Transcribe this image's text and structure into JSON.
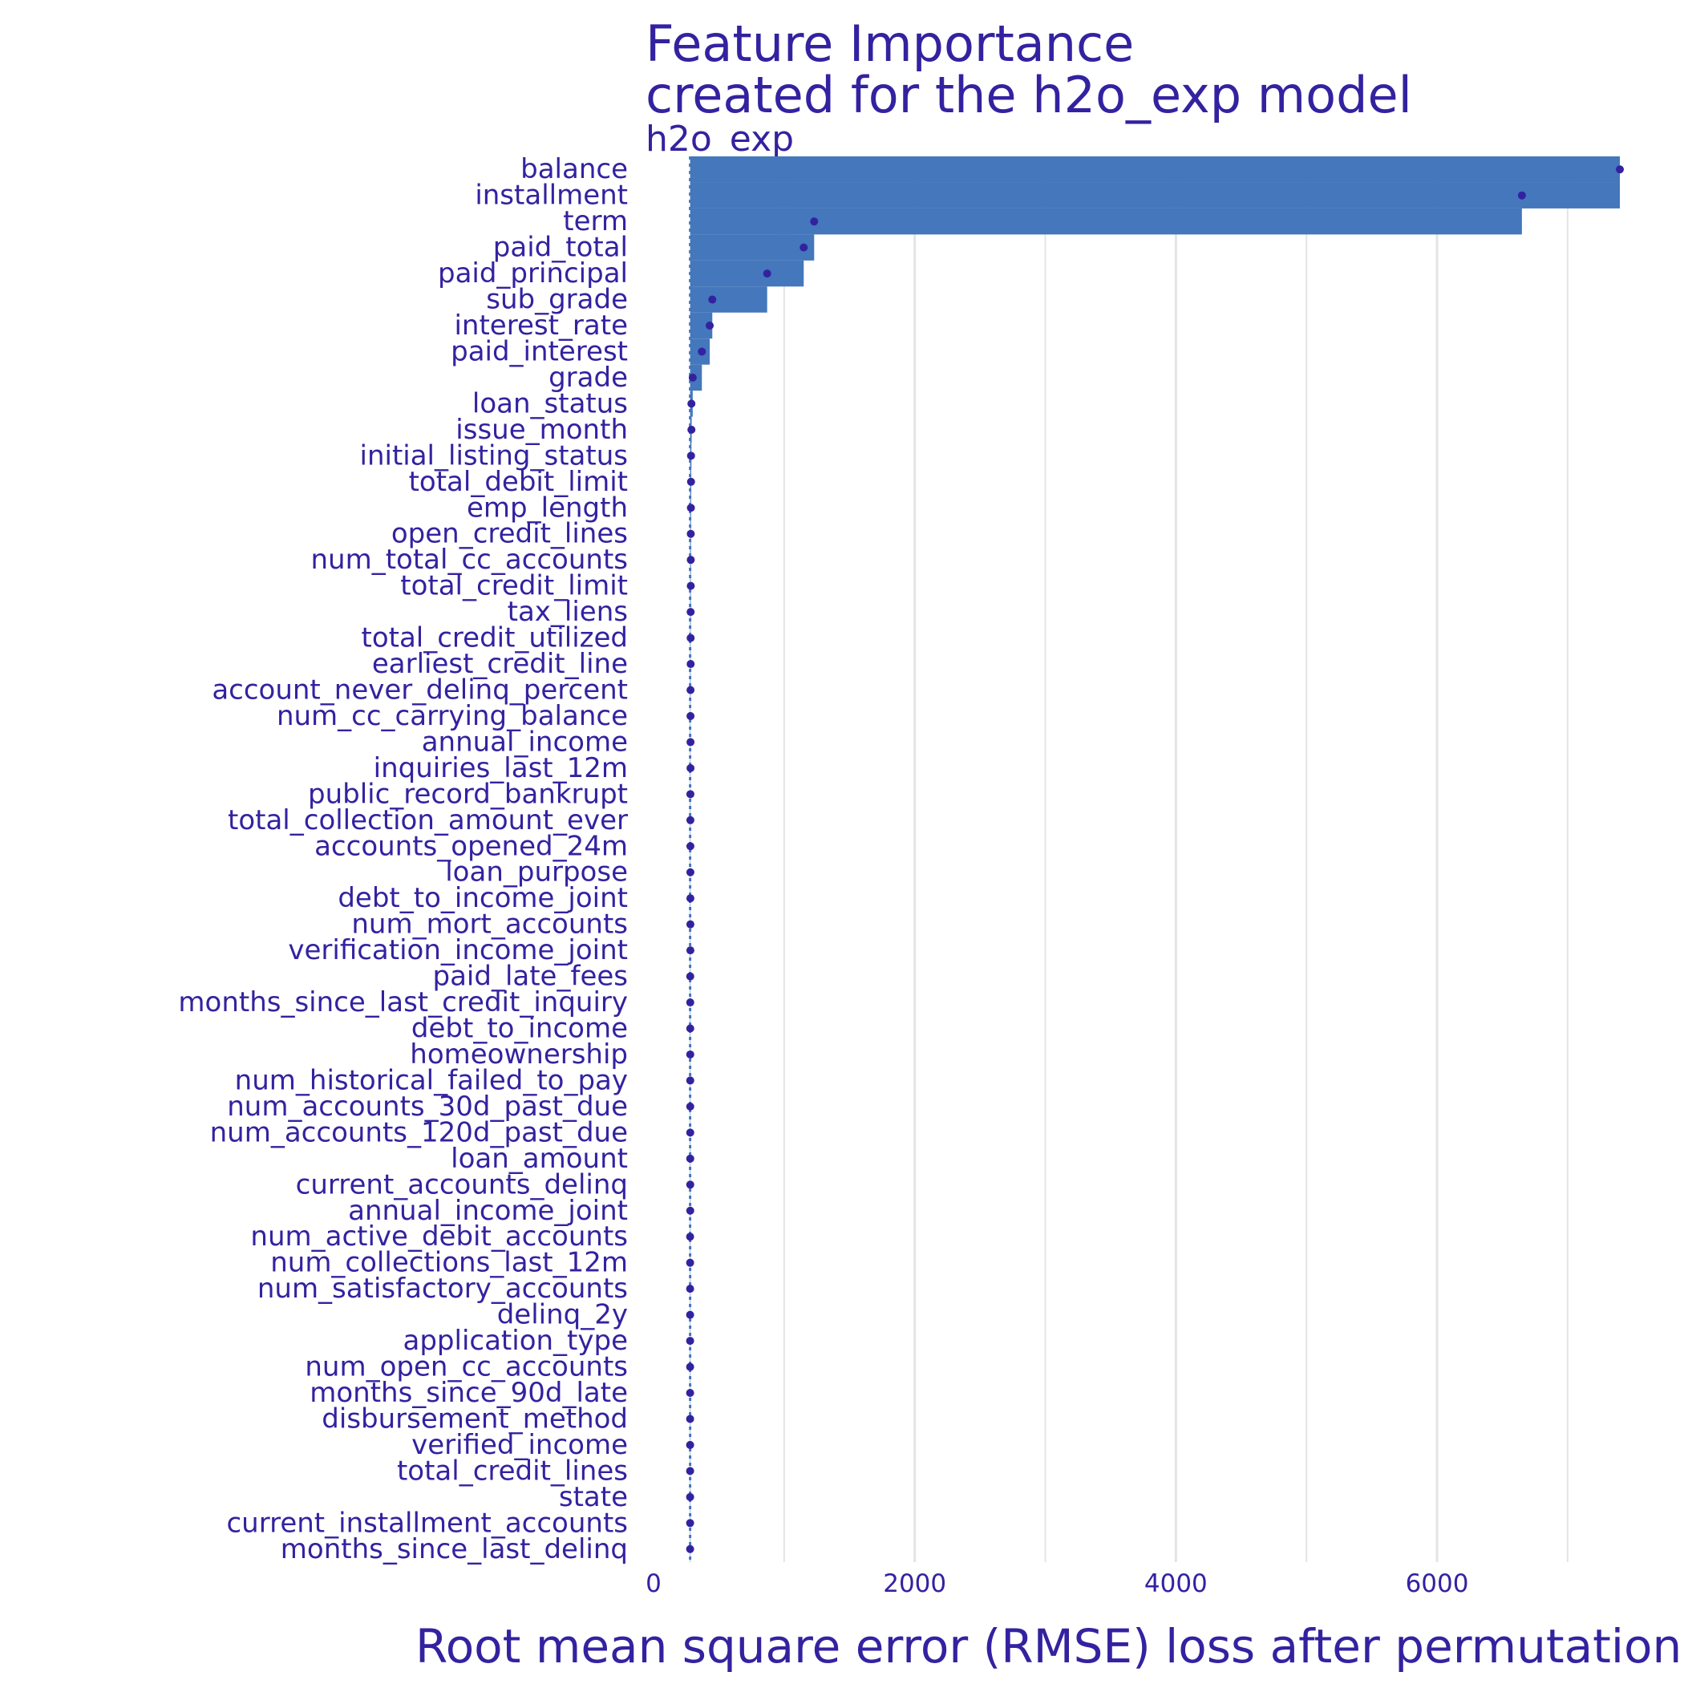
{
  "chart_data": {
    "type": "bar",
    "title": "Feature Importance",
    "subtitle": "created for the h2o_exp model",
    "panel_label": "h2o_exp",
    "xlabel": "Root mean square error (RMSE) loss after permutations",
    "ylabel": "",
    "xlim": [
      0,
      7400
    ],
    "x_ticks": [
      0,
      2000,
      4000,
      6000
    ],
    "x_tick_labels": [
      "0",
      "2000",
      "4000",
      "6000"
    ],
    "baseline": 280,
    "bar_color": "#4477bb",
    "point_color": "#3322a0",
    "text_color": "#3322a0",
    "grid_color": "#e4e4e4",
    "categories": [
      "balance",
      "installment",
      "term",
      "paid_total",
      "paid_principal",
      "sub_grade",
      "interest_rate",
      "paid_interest",
      "grade",
      "loan_status",
      "issue_month",
      "initial_listing_status",
      "total_debit_limit",
      "emp_length",
      "open_credit_lines",
      "num_total_cc_accounts",
      "total_credit_limit",
      "tax_liens",
      "total_credit_utilized",
      "earliest_credit_line",
      "account_never_delinq_percent",
      "num_cc_carrying_balance",
      "annual_income",
      "inquiries_last_12m",
      "public_record_bankrupt",
      "total_collection_amount_ever",
      "accounts_opened_24m",
      "loan_purpose",
      "debt_to_income_joint",
      "num_mort_accounts",
      "verification_income_joint",
      "paid_late_fees",
      "months_since_last_credit_inquiry",
      "debt_to_income",
      "homeownership",
      "num_historical_failed_to_pay",
      "num_accounts_30d_past_due",
      "num_accounts_120d_past_due",
      "loan_amount",
      "current_accounts_delinq",
      "annual_income_joint",
      "num_active_debit_accounts",
      "num_collections_last_12m",
      "num_satisfactory_accounts",
      "delinq_2y",
      "application_type",
      "num_open_cc_accounts",
      "months_since_90d_late",
      "disbursement_method",
      "verified_income",
      "total_credit_lines",
      "state",
      "current_installment_accounts",
      "months_since_last_delinq"
    ],
    "values": [
      7400,
      7400,
      6650,
      1230,
      1150,
      870,
      450,
      430,
      370,
      300,
      292,
      290,
      288,
      287,
      286,
      286,
      285,
      285,
      284,
      284,
      284,
      283,
      283,
      283,
      283,
      283,
      282,
      282,
      282,
      282,
      282,
      282,
      282,
      281,
      281,
      281,
      281,
      281,
      281,
      281,
      281,
      281,
      281,
      281,
      280,
      280,
      280,
      280,
      280,
      280,
      280,
      280,
      280,
      280
    ],
    "points": [
      7400,
      6650,
      1230,
      1150,
      870,
      450,
      430,
      370,
      300,
      290,
      290,
      287,
      287,
      286,
      285,
      285,
      285,
      284,
      284,
      284,
      283,
      283,
      283,
      283,
      282,
      282,
      282,
      282,
      282,
      282,
      282,
      281,
      281,
      281,
      281,
      281,
      281,
      281,
      281,
      281,
      281,
      280,
      280,
      280,
      280,
      280,
      280,
      280,
      280,
      280,
      280,
      280,
      280,
      280
    ]
  }
}
